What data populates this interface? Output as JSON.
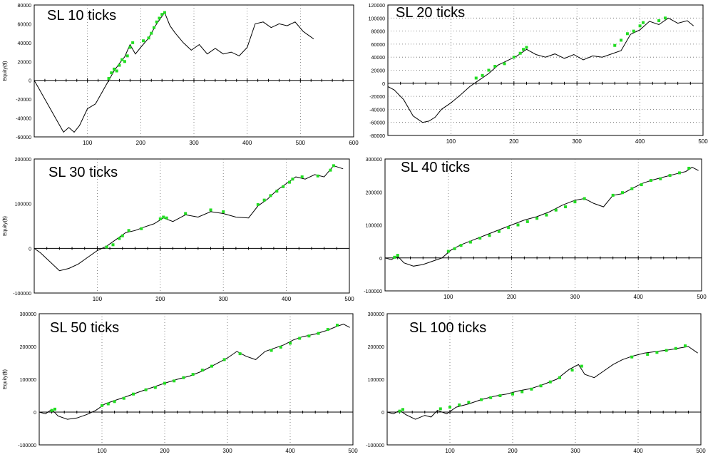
{
  "chart_data": [
    {
      "type": "line",
      "title": "SL 10 ticks",
      "ylabel": "Equity($)",
      "xlabel": "",
      "x_ticks": [
        100,
        200,
        300,
        400,
        500,
        600
      ],
      "y_ticks": [
        80000,
        60000,
        40000,
        20000,
        0,
        -20000,
        -40000,
        -60000
      ],
      "xlim": [
        0,
        600
      ],
      "ylim": [
        -60000,
        80000
      ],
      "grid": "dotted vertical",
      "line_color": "#000000",
      "marker_color": "#22dd22",
      "series": [
        {
          "x": [
            0,
            10,
            25,
            40,
            55,
            65,
            75,
            85,
            100,
            115,
            130,
            140,
            150,
            160,
            170,
            180,
            190,
            200,
            215,
            230,
            245,
            255,
            265,
            280,
            295,
            310,
            325,
            340,
            355,
            370,
            385,
            400,
            415,
            430,
            445,
            460,
            475,
            490,
            505,
            515,
            525
          ],
          "y": [
            0,
            -10000,
            -25000,
            -40000,
            -55000,
            -50000,
            -55000,
            -48000,
            -30000,
            -25000,
            -10000,
            0,
            10000,
            18000,
            25000,
            38000,
            28000,
            35000,
            45000,
            60000,
            72000,
            58000,
            50000,
            40000,
            32000,
            38000,
            28000,
            34000,
            28000,
            30000,
            26000,
            35000,
            60000,
            62000,
            56000,
            60000,
            58000,
            62000,
            52000,
            48000,
            44000
          ]
        }
      ],
      "highlights": [
        {
          "x": [
            140,
            145,
            150,
            155,
            160,
            165,
            170,
            175,
            180,
            185,
            205,
            215,
            220,
            225,
            230,
            235,
            240,
            245
          ],
          "y": [
            2000,
            8000,
            12000,
            10000,
            16000,
            22000,
            20000,
            26000,
            35000,
            40000,
            42000,
            45000,
            50000,
            56000,
            62000,
            66000,
            70000,
            72000
          ]
        }
      ]
    },
    {
      "type": "line",
      "title": "SL 20 ticks",
      "ylabel": "",
      "xlabel": "",
      "x_ticks": [
        100,
        200,
        300,
        400,
        500
      ],
      "y_ticks": [
        120000,
        100000,
        80000,
        60000,
        40000,
        20000,
        0,
        -20000,
        -40000,
        -60000,
        -80000
      ],
      "xlim": [
        0,
        500
      ],
      "ylim": [
        -80000,
        120000
      ],
      "grid": "dotted",
      "line_color": "#000000",
      "marker_color": "#22dd22",
      "series": [
        {
          "x": [
            0,
            10,
            25,
            40,
            55,
            65,
            75,
            85,
            100,
            115,
            130,
            145,
            160,
            175,
            190,
            205,
            220,
            235,
            250,
            265,
            280,
            295,
            310,
            325,
            340,
            355,
            370,
            385,
            400,
            415,
            430,
            445,
            460,
            475,
            485
          ],
          "y": [
            -5000,
            -10000,
            -25000,
            -50000,
            -60000,
            -58000,
            -52000,
            -40000,
            -30000,
            -18000,
            -5000,
            5000,
            15000,
            28000,
            35000,
            42000,
            52000,
            44000,
            40000,
            45000,
            38000,
            44000,
            36000,
            42000,
            40000,
            45000,
            50000,
            75000,
            82000,
            95000,
            90000,
            100000,
            92000,
            96000,
            88000
          ]
        }
      ],
      "highlights": [
        {
          "x": [
            140,
            150,
            160,
            170,
            185,
            200,
            210,
            215,
            220,
            360,
            370,
            380,
            390,
            400,
            405,
            430,
            440
          ],
          "y": [
            8000,
            12000,
            20000,
            26000,
            30000,
            40000,
            46000,
            52000,
            55000,
            58000,
            66000,
            76000,
            80000,
            88000,
            93000,
            96000,
            100000
          ]
        }
      ]
    },
    {
      "type": "line",
      "title": "SL 30 ticks",
      "ylabel": "Equity($)",
      "xlabel": "",
      "x_ticks": [
        100,
        200,
        300,
        400,
        500
      ],
      "y_ticks": [
        200000,
        100000,
        0,
        -100000
      ],
      "xlim": [
        0,
        500
      ],
      "ylim": [
        -100000,
        200000
      ],
      "grid": "dotted vertical",
      "line_color": "#000000",
      "marker_color": "#22dd22",
      "series": [
        {
          "x": [
            0,
            10,
            25,
            40,
            55,
            70,
            85,
            100,
            115,
            130,
            145,
            160,
            175,
            190,
            205,
            220,
            240,
            260,
            280,
            300,
            320,
            340,
            355,
            370,
            385,
            400,
            415,
            430,
            445,
            460,
            475,
            490
          ],
          "y": [
            0,
            -10000,
            -30000,
            -50000,
            -45000,
            -35000,
            -20000,
            -5000,
            5000,
            20000,
            35000,
            40000,
            48000,
            55000,
            68000,
            60000,
            75000,
            70000,
            82000,
            78000,
            70000,
            68000,
            95000,
            110000,
            130000,
            145000,
            160000,
            155000,
            165000,
            160000,
            185000,
            178000
          ]
        }
      ],
      "highlights": [
        {
          "x": [
            115,
            125,
            135,
            140,
            150,
            170,
            200,
            205,
            210,
            240,
            280,
            300,
            355,
            365,
            375,
            385,
            395,
            405,
            410,
            425,
            450,
            470,
            475
          ],
          "y": [
            3000,
            8000,
            22000,
            28000,
            40000,
            44000,
            66000,
            70000,
            68000,
            78000,
            86000,
            82000,
            98000,
            108000,
            118000,
            128000,
            138000,
            148000,
            155000,
            160000,
            162000,
            175000,
            185000
          ]
        }
      ]
    },
    {
      "type": "line",
      "title": "SL 40 ticks",
      "ylabel": "",
      "xlabel": "",
      "x_ticks": [
        100,
        200,
        300,
        400,
        500
      ],
      "y_ticks": [
        300000,
        200000,
        100000,
        0,
        -100000
      ],
      "xlim": [
        0,
        500
      ],
      "ylim": [
        -100000,
        300000
      ],
      "grid": "dotted vertical",
      "line_color": "#000000",
      "marker_color": "#22dd22",
      "series": [
        {
          "x": [
            0,
            10,
            20,
            30,
            45,
            60,
            75,
            90,
            105,
            120,
            140,
            160,
            180,
            200,
            220,
            240,
            260,
            280,
            300,
            315,
            330,
            345,
            360,
            375,
            390,
            405,
            420,
            440,
            460,
            475,
            485,
            495
          ],
          "y": [
            0,
            -5000,
            5000,
            -15000,
            -25000,
            -20000,
            -10000,
            0,
            25000,
            40000,
            55000,
            70000,
            85000,
            100000,
            115000,
            125000,
            140000,
            160000,
            175000,
            180000,
            165000,
            155000,
            190000,
            195000,
            210000,
            225000,
            235000,
            245000,
            255000,
            262000,
            275000,
            265000
          ]
        }
      ],
      "highlights": [
        {
          "x": [
            15,
            20,
            100,
            110,
            120,
            135,
            150,
            165,
            180,
            195,
            210,
            225,
            240,
            255,
            270,
            285,
            300,
            315,
            360,
            375,
            390,
            405,
            420,
            435,
            450,
            465,
            480
          ],
          "y": [
            2000,
            8000,
            20000,
            28000,
            38000,
            48000,
            60000,
            68000,
            80000,
            92000,
            100000,
            110000,
            120000,
            130000,
            145000,
            155000,
            170000,
            180000,
            190000,
            198000,
            210000,
            222000,
            235000,
            240000,
            250000,
            258000,
            272000
          ]
        }
      ]
    },
    {
      "type": "line",
      "title": "SL 50 ticks",
      "ylabel": "Equity($)",
      "xlabel": "",
      "x_ticks": [
        100,
        200,
        300,
        400,
        500
      ],
      "y_ticks": [
        300000,
        200000,
        100000,
        0,
        -100000
      ],
      "xlim": [
        0,
        500
      ],
      "ylim": [
        -100000,
        300000
      ],
      "grid": "dotted vertical",
      "line_color": "#000000",
      "marker_color": "#22dd22",
      "series": [
        {
          "x": [
            0,
            10,
            20,
            30,
            45,
            60,
            75,
            90,
            105,
            120,
            140,
            160,
            180,
            200,
            220,
            240,
            260,
            280,
            300,
            315,
            330,
            345,
            360,
            375,
            390,
            405,
            420,
            440,
            460,
            475,
            485,
            495
          ],
          "y": [
            0,
            -5000,
            8000,
            -12000,
            -22000,
            -18000,
            -8000,
            5000,
            25000,
            35000,
            48000,
            62000,
            75000,
            88000,
            100000,
            110000,
            125000,
            145000,
            165000,
            185000,
            170000,
            160000,
            185000,
            195000,
            205000,
            220000,
            230000,
            238000,
            250000,
            262000,
            268000,
            258000
          ]
        }
      ],
      "highlights": [
        {
          "x": [
            20,
            25,
            100,
            110,
            120,
            135,
            150,
            170,
            185,
            200,
            215,
            230,
            245,
            260,
            275,
            295,
            320,
            370,
            385,
            400,
            415,
            430,
            445,
            460,
            475
          ],
          "y": [
            5000,
            9000,
            20000,
            25000,
            32000,
            42000,
            55000,
            68000,
            75000,
            88000,
            95000,
            105000,
            115000,
            128000,
            140000,
            160000,
            178000,
            188000,
            198000,
            210000,
            225000,
            232000,
            240000,
            252000,
            265000
          ]
        }
      ]
    },
    {
      "type": "line",
      "title": "SL 100 ticks",
      "ylabel": "",
      "xlabel": "",
      "x_ticks": [
        100,
        200,
        300,
        400,
        500
      ],
      "y_ticks": [
        300000,
        200000,
        100000,
        0,
        -100000
      ],
      "xlim": [
        0,
        500
      ],
      "ylim": [
        -100000,
        300000
      ],
      "grid": "dotted vertical",
      "line_color": "#000000",
      "marker_color": "#22dd22",
      "series": [
        {
          "x": [
            0,
            10,
            20,
            30,
            45,
            60,
            70,
            80,
            95,
            110,
            130,
            150,
            170,
            190,
            210,
            230,
            250,
            270,
            290,
            305,
            315,
            330,
            345,
            360,
            375,
            390,
            410,
            430,
            450,
            465,
            480,
            495
          ],
          "y": [
            0,
            -5000,
            5000,
            -8000,
            -22000,
            -10000,
            -15000,
            5000,
            -5000,
            15000,
            25000,
            38000,
            48000,
            55000,
            65000,
            72000,
            85000,
            100000,
            130000,
            145000,
            115000,
            105000,
            125000,
            145000,
            160000,
            170000,
            180000,
            185000,
            190000,
            195000,
            200000,
            180000
          ]
        }
      ],
      "highlights": [
        {
          "x": [
            20,
            25,
            85,
            100,
            115,
            130,
            150,
            165,
            180,
            200,
            215,
            230,
            245,
            260,
            275,
            295,
            310,
            390,
            415,
            430,
            445,
            460,
            475
          ],
          "y": [
            3000,
            8000,
            10000,
            15000,
            22000,
            30000,
            38000,
            44000,
            50000,
            55000,
            62000,
            70000,
            80000,
            92000,
            105000,
            128000,
            140000,
            168000,
            176000,
            182000,
            188000,
            194000,
            202000
          ]
        }
      ]
    }
  ]
}
